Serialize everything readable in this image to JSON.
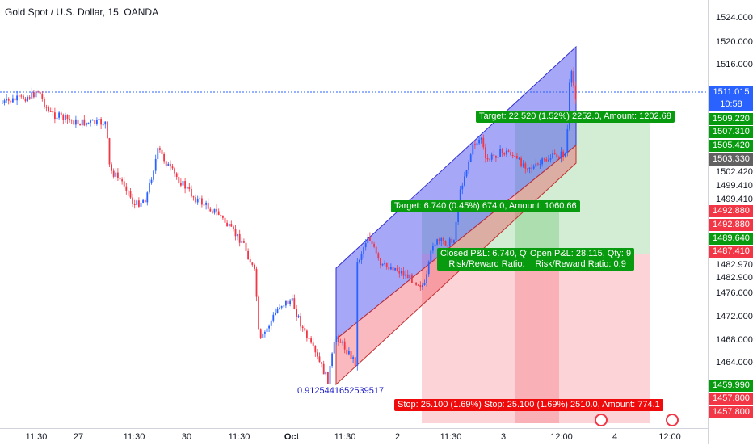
{
  "header": {
    "title": "Gold Spot / U.S. Dollar, 15, OANDA"
  },
  "price_axis": {
    "ticks": [
      "1524.000",
      "1520.000",
      "1516.000",
      "1502.420",
      "1499.410",
      "1499.410",
      "1482.970",
      "1482.900",
      "1476.000",
      "1472.000",
      "1468.000",
      "1464.000"
    ],
    "labels": [
      {
        "text": "1511.015",
        "bg": "#2962ff"
      },
      {
        "text": "10:58",
        "bg": "#2962ff"
      },
      {
        "text": "1509.220",
        "bg": "#089b0f"
      },
      {
        "text": "1507.310",
        "bg": "#089b0f"
      },
      {
        "text": "1505.420",
        "bg": "#089b0f"
      },
      {
        "text": "1503.330",
        "bg": "#616161"
      },
      {
        "text": "1492.880",
        "bg": "#f23645"
      },
      {
        "text": "1492.880",
        "bg": "#f23645"
      },
      {
        "text": "1489.640",
        "bg": "#089b0f"
      },
      {
        "text": "1487.410",
        "bg": "#f23645"
      },
      {
        "text": "1459.990",
        "bg": "#089b0f"
      },
      {
        "text": "1457.800",
        "bg": "#f23645"
      },
      {
        "text": "1457.800",
        "bg": "#f23645"
      }
    ]
  },
  "time_axis": {
    "ticks": [
      "11:30",
      "27",
      "11:30",
      "30",
      "11:30",
      "Oct",
      "11:30",
      "2",
      "11:30",
      "3",
      "12:00",
      "4",
      "12:00"
    ]
  },
  "annotations": {
    "target_top": "Target: 22.520 (1.52%) 2252.0, Amount: 1202.68",
    "target_mid": "Target: 6.740 (0.45%) 674.0, Amount: 1060.66",
    "closed_pl": "Closed P&L: 6.740, Qty: 10",
    "closed_rr": "Risk/Reward Ratio: 0.3",
    "open_pl": "Open P&L: 28.115, Qty: 9",
    "open_rr": "Risk/Reward Ratio: 0.9",
    "stop": "Stop: 25.100 (1.69%) Stop: 25.100 (1.69%) 2510.0, Amount: 774.1",
    "fib_value": "0.9125441652539517"
  },
  "colors": {
    "up": "#26a69a",
    "bull": "#2962ff",
    "bear": "#f23645",
    "green_zone": "#089b0f",
    "red_zone": "#ef0b0b"
  }
}
